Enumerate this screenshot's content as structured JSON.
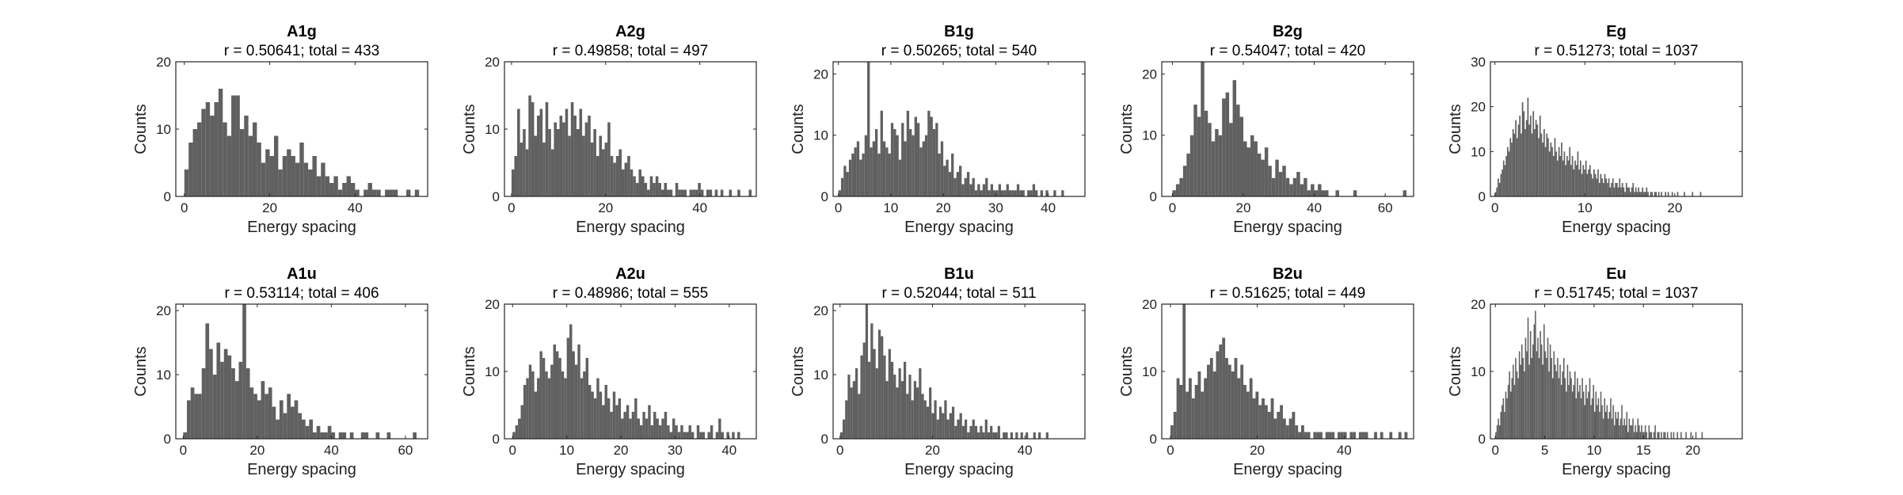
{
  "figure": {
    "bar_color": "#606060",
    "axis_color": "#262626"
  },
  "chart_data": [
    {
      "type": "bar",
      "title": "A1g",
      "subtitle": "r = 0.50641; total = 433",
      "xlabel": "Energy spacing",
      "ylabel": "Counts",
      "xlim": [
        -2,
        57
      ],
      "ylim": [
        0,
        20
      ],
      "xticks": [
        0,
        20,
        40
      ],
      "yticks": [
        0,
        10,
        20
      ],
      "bin_start": 0,
      "bin_width": 1,
      "values": [
        4,
        8,
        10,
        11,
        13,
        14,
        12,
        14,
        16,
        11,
        9,
        15,
        15,
        10,
        12,
        9,
        11,
        8,
        5,
        7,
        6,
        9,
        4,
        6,
        7,
        6,
        5,
        8,
        5,
        4,
        6,
        3,
        5,
        3,
        2,
        3,
        1,
        2,
        3,
        2,
        1,
        0,
        1,
        2,
        1,
        1,
        0,
        1,
        1,
        1,
        0,
        0,
        1,
        0,
        1
      ]
    },
    {
      "type": "bar",
      "title": "A2g",
      "subtitle": "r = 0.49858; total = 497",
      "xlabel": "Energy spacing",
      "ylabel": "Counts",
      "xlim": [
        -1.5,
        52
      ],
      "ylim": [
        0,
        20
      ],
      "xticks": [
        0,
        20,
        40
      ],
      "yticks": [
        0,
        10,
        20
      ],
      "bin_start": 0,
      "bin_width": 0.6,
      "values": [
        4,
        6,
        13,
        8,
        10,
        7,
        15,
        14,
        9,
        12,
        13,
        8,
        14,
        10,
        7,
        11,
        10,
        12,
        11,
        13,
        9,
        14,
        12,
        10,
        13,
        9,
        11,
        12,
        8,
        10,
        6,
        9,
        7,
        8,
        11,
        6,
        5,
        6,
        7,
        4,
        5,
        6,
        4,
        3,
        2,
        4,
        3,
        2,
        1,
        3,
        2,
        3,
        2,
        1,
        2,
        1,
        1,
        0,
        2,
        1,
        1,
        1,
        0,
        1,
        1,
        1,
        2,
        1,
        0,
        1,
        1,
        0,
        1,
        0,
        1,
        0,
        0,
        1,
        0,
        0,
        1,
        0,
        0,
        0,
        1
      ]
    },
    {
      "type": "bar",
      "title": "B1g",
      "subtitle": "r = 0.50265; total = 540",
      "xlabel": "Energy spacing",
      "ylabel": "Counts",
      "xlim": [
        -1,
        47
      ],
      "ylim": [
        0,
        22
      ],
      "xticks": [
        0,
        10,
        20,
        30,
        40
      ],
      "yticks": [
        0,
        10,
        20
      ],
      "bin_start": 0,
      "bin_width": 0.5,
      "values": [
        1,
        3,
        5,
        4,
        6,
        7,
        8,
        9,
        6,
        7,
        10,
        23,
        8,
        9,
        11,
        7,
        14,
        9,
        8,
        7,
        12,
        11,
        10,
        6,
        12,
        9,
        14,
        11,
        10,
        13,
        12,
        8,
        9,
        10,
        14,
        13,
        11,
        12,
        7,
        9,
        5,
        6,
        4,
        7,
        3,
        4,
        5,
        2,
        3,
        4,
        2,
        3,
        1,
        2,
        1,
        2,
        3,
        1,
        2,
        1,
        1,
        2,
        1,
        1,
        2,
        1,
        1,
        1,
        2,
        1,
        1,
        0,
        1,
        1,
        2,
        1,
        0,
        1,
        0,
        1,
        0,
        0,
        1,
        0,
        0,
        1
      ]
    },
    {
      "type": "bar",
      "title": "B2g",
      "subtitle": "r = 0.54047; total = 420",
      "xlabel": "Energy spacing",
      "ylabel": "Counts",
      "xlim": [
        -3,
        68
      ],
      "ylim": [
        0,
        22
      ],
      "xticks": [
        0,
        20,
        40,
        60
      ],
      "yticks": [
        0,
        10,
        20
      ],
      "bin_start": 0,
      "bin_width": 1,
      "values": [
        1,
        2,
        3,
        5,
        7,
        10,
        15,
        13,
        22,
        14,
        12,
        9,
        11,
        10,
        16,
        17,
        12,
        19,
        15,
        13,
        9,
        8,
        10,
        9,
        7,
        6,
        8,
        5,
        3,
        6,
        4,
        5,
        3,
        2,
        3,
        4,
        2,
        3,
        1,
        2,
        1,
        2,
        1,
        1,
        0,
        0,
        1,
        0,
        0,
        0,
        0,
        1,
        0,
        0,
        0,
        0,
        0,
        0,
        0,
        0,
        0,
        0,
        0,
        0,
        0,
        1
      ]
    },
    {
      "type": "bar",
      "title": "Eg",
      "subtitle": "r = 0.51273; total = 1037",
      "xlabel": "Energy spacing",
      "ylabel": "Counts",
      "xlim": [
        -0.5,
        27.5
      ],
      "ylim": [
        0,
        30
      ],
      "xticks": [
        0,
        10,
        20
      ],
      "yticks": [
        0,
        10,
        20,
        30
      ],
      "bin_start": 0,
      "bin_width": 0.15,
      "values": [
        1,
        2,
        4,
        3,
        5,
        6,
        8,
        7,
        9,
        11,
        10,
        13,
        12,
        15,
        14,
        17,
        13,
        16,
        18,
        14,
        21,
        19,
        15,
        17,
        22,
        16,
        18,
        14,
        19,
        15,
        17,
        16,
        13,
        18,
        14,
        12,
        15,
        11,
        14,
        13,
        10,
        12,
        11,
        9,
        13,
        10,
        8,
        11,
        9,
        12,
        8,
        10,
        7,
        9,
        8,
        11,
        7,
        9,
        6,
        8,
        7,
        10,
        6,
        8,
        5,
        7,
        6,
        8,
        5,
        6,
        7,
        5,
        4,
        6,
        5,
        4,
        6,
        3,
        5,
        4,
        3,
        5,
        4,
        3,
        4,
        2,
        3,
        4,
        2,
        3,
        3,
        2,
        4,
        2,
        3,
        2,
        1,
        3,
        2,
        2,
        1,
        2,
        3,
        1,
        2,
        1,
        2,
        1,
        1,
        2,
        1,
        1,
        2,
        1,
        0,
        1,
        1,
        0,
        1,
        1,
        0,
        1,
        0,
        1,
        0,
        0,
        1,
        0,
        1,
        0,
        0,
        1,
        0,
        0,
        0,
        1,
        0,
        0,
        0,
        0,
        1,
        0,
        0,
        0,
        0,
        0,
        1,
        0,
        0,
        0,
        0,
        0,
        1
      ]
    },
    {
      "type": "bar",
      "title": "A1u",
      "subtitle": "r = 0.53114; total = 406",
      "xlabel": "Energy spacing",
      "ylabel": "Counts",
      "xlim": [
        -2,
        66
      ],
      "ylim": [
        0,
        21
      ],
      "xticks": [
        0,
        20,
        40,
        60
      ],
      "yticks": [
        0,
        10,
        20
      ],
      "bin_start": 0,
      "bin_width": 1,
      "values": [
        1,
        6,
        8,
        7,
        7,
        11,
        18,
        14,
        10,
        15,
        12,
        14,
        13,
        11,
        9,
        12,
        21,
        11,
        8,
        7,
        6,
        9,
        7,
        8,
        5,
        3,
        6,
        4,
        7,
        5,
        6,
        4,
        3,
        2,
        3,
        1,
        2,
        1,
        1,
        2,
        1,
        0,
        1,
        1,
        0,
        1,
        0,
        0,
        1,
        1,
        0,
        0,
        1,
        0,
        0,
        1,
        0,
        0,
        0,
        0,
        0,
        0,
        1
      ]
    },
    {
      "type": "bar",
      "title": "A2u",
      "subtitle": "r = 0.48986; total = 555",
      "xlabel": "Energy spacing",
      "ylabel": "Counts",
      "xlim": [
        -1.5,
        45
      ],
      "ylim": [
        0,
        20
      ],
      "xticks": [
        0,
        10,
        20,
        30,
        40
      ],
      "yticks": [
        0,
        10,
        20
      ],
      "bin_start": 0,
      "bin_width": 0.5,
      "values": [
        1,
        2,
        3,
        5,
        8,
        9,
        11,
        10,
        7,
        9,
        13,
        12,
        10,
        9,
        11,
        14,
        13,
        12,
        10,
        9,
        15,
        17,
        13,
        11,
        14,
        9,
        10,
        12,
        8,
        7,
        6,
        9,
        7,
        5,
        8,
        6,
        4,
        7,
        5,
        6,
        3,
        4,
        5,
        3,
        4,
        6,
        3,
        2,
        4,
        3,
        5,
        2,
        4,
        3,
        2,
        3,
        4,
        2,
        1,
        3,
        2,
        1,
        2,
        1,
        1,
        2,
        1,
        0,
        2,
        1,
        1,
        0,
        1,
        2,
        0,
        1,
        3,
        1,
        0,
        1,
        0,
        1,
        0,
        1
      ]
    },
    {
      "type": "bar",
      "title": "B1u",
      "subtitle": "r = 0.52044; total = 511",
      "xlabel": "Energy spacing",
      "ylabel": "Counts",
      "xlim": [
        -1.5,
        53
      ],
      "ylim": [
        0,
        21
      ],
      "xticks": [
        0,
        20,
        40
      ],
      "yticks": [
        0,
        10,
        20
      ],
      "bin_start": 0,
      "bin_width": 0.55,
      "values": [
        1,
        3,
        6,
        10,
        8,
        9,
        11,
        7,
        13,
        15,
        21,
        12,
        18,
        14,
        11,
        17,
        16,
        13,
        9,
        14,
        12,
        10,
        8,
        11,
        9,
        12,
        7,
        10,
        6,
        9,
        8,
        11,
        7,
        6,
        5,
        8,
        4,
        6,
        3,
        5,
        4,
        6,
        3,
        4,
        5,
        2,
        3,
        4,
        2,
        3,
        1,
        2,
        3,
        2,
        1,
        2,
        1,
        3,
        1,
        2,
        1,
        1,
        2,
        0,
        1,
        1,
        0,
        1,
        0,
        1,
        0,
        1,
        0,
        1,
        0,
        0,
        1,
        0,
        1,
        0,
        0,
        1
      ]
    },
    {
      "type": "bar",
      "title": "B2u",
      "subtitle": "r = 0.51625; total = 449",
      "xlabel": "Energy spacing",
      "ylabel": "Counts",
      "xlim": [
        -2,
        56
      ],
      "ylim": [
        0,
        20
      ],
      "xticks": [
        0,
        20,
        40
      ],
      "yticks": [
        0,
        10,
        20
      ],
      "bin_start": 0,
      "bin_width": 0.7,
      "values": [
        2,
        4,
        9,
        8,
        20,
        7,
        9,
        6,
        8,
        10,
        7,
        9,
        11,
        12,
        10,
        13,
        14,
        15,
        12,
        11,
        10,
        12,
        9,
        11,
        8,
        7,
        9,
        6,
        7,
        5,
        6,
        5,
        4,
        6,
        3,
        4,
        5,
        3,
        2,
        3,
        4,
        2,
        1,
        2,
        1,
        1,
        0,
        1,
        1,
        1,
        0,
        1,
        1,
        1,
        0,
        1,
        1,
        1,
        0,
        1,
        1,
        0,
        1,
        1,
        1,
        0,
        0,
        1,
        0,
        1,
        0,
        0,
        1,
        0,
        0,
        1,
        0,
        1
      ]
    },
    {
      "type": "bar",
      "title": "Eu",
      "subtitle": "r = 0.51745; total = 1037",
      "xlabel": "Energy spacing",
      "ylabel": "Counts",
      "xlim": [
        -0.5,
        25
      ],
      "ylim": [
        0,
        20
      ],
      "xticks": [
        0,
        5,
        10,
        15,
        20
      ],
      "yticks": [
        0,
        10,
        20
      ],
      "bin_start": 0,
      "bin_width": 0.125,
      "values": [
        1,
        2,
        3,
        2,
        4,
        5,
        6,
        4,
        7,
        6,
        8,
        10,
        7,
        9,
        11,
        8,
        12,
        10,
        9,
        13,
        11,
        14,
        12,
        10,
        15,
        13,
        18,
        11,
        16,
        12,
        14,
        17,
        19,
        13,
        15,
        12,
        16,
        14,
        11,
        17,
        13,
        12,
        15,
        10,
        14,
        12,
        9,
        13,
        11,
        10,
        12,
        9,
        11,
        8,
        10,
        12,
        9,
        7,
        11,
        8,
        10,
        9,
        7,
        8,
        10,
        6,
        9,
        7,
        8,
        6,
        9,
        7,
        5,
        8,
        6,
        7,
        9,
        5,
        6,
        8,
        4,
        7,
        5,
        6,
        4,
        7,
        5,
        3,
        6,
        4,
        5,
        3,
        4,
        6,
        3,
        5,
        2,
        4,
        3,
        4,
        2,
        3,
        5,
        2,
        3,
        2,
        4,
        1,
        3,
        2,
        2,
        3,
        1,
        2,
        1,
        3,
        2,
        1,
        2,
        1,
        1,
        2,
        1,
        0,
        2,
        1,
        1,
        0,
        1,
        2,
        0,
        1,
        1,
        0,
        1,
        0,
        1,
        1,
        0,
        1,
        0,
        0,
        1,
        0,
        1,
        0,
        0,
        1,
        0,
        0,
        1,
        0,
        0,
        0,
        1,
        0,
        0,
        0,
        1,
        0,
        0,
        0,
        1,
        0,
        0,
        0,
        0,
        1
      ]
    }
  ]
}
